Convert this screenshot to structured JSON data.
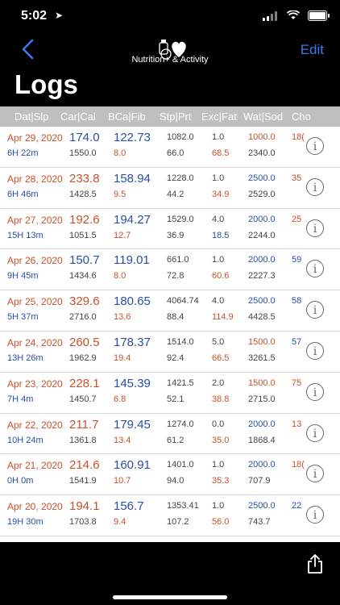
{
  "status": {
    "time": "5:02",
    "location_icon": "location-arrow-icon"
  },
  "nav": {
    "edit_label": "Edit",
    "app_title": "Nutrition+ & Activity",
    "page_title": "Logs"
  },
  "columns": [
    "Dat|Slp",
    "Car|Cal",
    "BCa|Fib",
    "Stp|Prt",
    "Exc|Fat",
    "Wat|Sod",
    "Cho"
  ],
  "rows": [
    {
      "date": "Apr 29, 2020",
      "sleep": "6H 22m",
      "car": "174.0",
      "cal": "1550.0",
      "bca": "122.73",
      "fib": "8.0",
      "stp": "1082.0",
      "prt": "66.0",
      "exc": "1.0",
      "fat": "68.5",
      "wat": "1000.0",
      "sod": "2340.0",
      "cho": "18("
    },
    {
      "date": "Apr 28, 2020",
      "sleep": "6H 46m",
      "car": "233.8",
      "cal": "1428.5",
      "bca": "158.94",
      "fib": "9.5",
      "stp": "1228.0",
      "prt": "44.2",
      "exc": "1.0",
      "fat": "34.9",
      "wat": "2500.0",
      "sod": "2529.0",
      "cho": "35"
    },
    {
      "date": "Apr 27, 2020",
      "sleep": "15H 13m",
      "car": "192.6",
      "cal": "1051.5",
      "bca": "194.27",
      "fib": "12.7",
      "stp": "1529.0",
      "prt": "36.9",
      "exc": "4.0",
      "fat": "18.5",
      "wat": "2000.0",
      "sod": "2244.0",
      "cho": "25"
    },
    {
      "date": "Apr 26, 2020",
      "sleep": "9H 45m",
      "car": "150.7",
      "cal": "1434.6",
      "bca": "119.01",
      "fib": "8.0",
      "stp": "661.0",
      "prt": "72.8",
      "exc": "1.0",
      "fat": "60.6",
      "wat": "2000.0",
      "sod": "2227.3",
      "cho": "59"
    },
    {
      "date": "Apr 25, 2020",
      "sleep": "5H 37m",
      "car": "329.6",
      "cal": "2716.0",
      "bca": "180.65",
      "fib": "13.6",
      "stp": "4064.74",
      "prt": "88.4",
      "exc": "4.0",
      "fat": "114.9",
      "wat": "2500.0",
      "sod": "4428.5",
      "cho": "58"
    },
    {
      "date": "Apr 24, 2020",
      "sleep": "13H 26m",
      "car": "260.5",
      "cal": "1962.9",
      "bca": "178.37",
      "fib": "19.4",
      "stp": "1514.0",
      "prt": "92.4",
      "exc": "5.0",
      "fat": "66.5",
      "wat": "1500.0",
      "sod": "3261.5",
      "cho": "57"
    },
    {
      "date": "Apr 23, 2020",
      "sleep": "7H 4m",
      "car": "228.1",
      "cal": "1450.7",
      "bca": "145.39",
      "fib": "6.8",
      "stp": "1421.5",
      "prt": "52.1",
      "exc": "2.0",
      "fat": "38.8",
      "wat": "1500.0",
      "sod": "2715.0",
      "cho": "75"
    },
    {
      "date": "Apr 22, 2020",
      "sleep": "10H 24m",
      "car": "211.7",
      "cal": "1361.8",
      "bca": "179.45",
      "fib": "13.4",
      "stp": "1274.0",
      "prt": "61.2",
      "exc": "0.0",
      "fat": "35.0",
      "wat": "2000.0",
      "sod": "1868.4",
      "cho": "13"
    },
    {
      "date": "Apr 21, 2020",
      "sleep": "0H 0m",
      "car": "214.6",
      "cal": "1541.9",
      "bca": "160.91",
      "fib": "10.7",
      "stp": "1401.0",
      "prt": "94.0",
      "exc": "1.0",
      "fat": "35.3",
      "wat": "2000.0",
      "sod": "707.9",
      "cho": "18("
    },
    {
      "date": "Apr 20, 2020",
      "sleep": "19H 30m",
      "car": "194.1",
      "cal": "1703.8",
      "bca": "156.7",
      "fib": "9.4",
      "stp": "1353.41",
      "prt": "107.2",
      "exc": "1.0",
      "fat": "56.0",
      "wat": "2500.0",
      "sod": "743.7",
      "cho": "22"
    }
  ],
  "colors": {
    "accent": "#3a7bea",
    "red": "#c9502a",
    "blue": "#274fa8",
    "header": "#bfbfbf"
  },
  "icons": {
    "back": "back-chevron-icon",
    "info": "info-icon",
    "share": "share-icon"
  }
}
